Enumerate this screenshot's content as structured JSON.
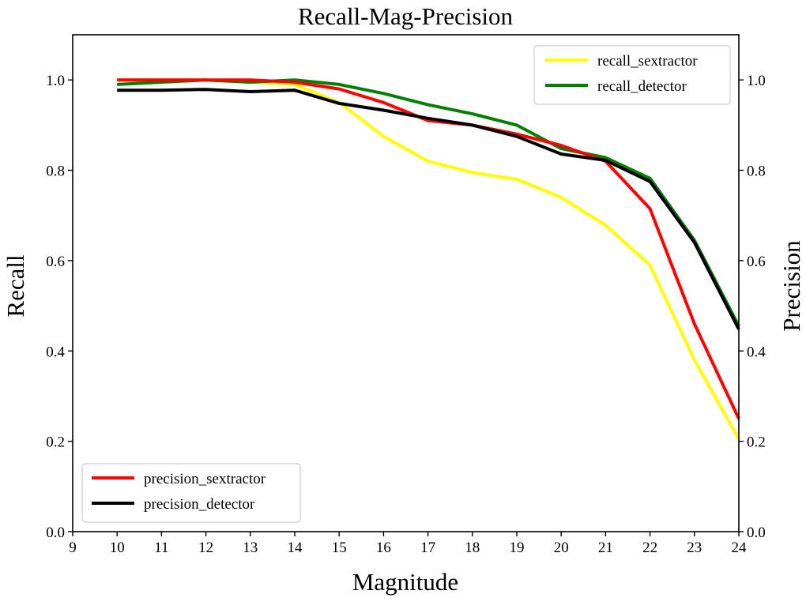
{
  "chart_data": {
    "type": "line",
    "title": "Recall-Mag-Precision",
    "xlabel": "Magnitude",
    "ylabel": "Recall",
    "y2label": "Precision",
    "xlim": [
      9,
      24
    ],
    "ylim": [
      0.0,
      1.1
    ],
    "y2lim": [
      0.0,
      1.1
    ],
    "grid": false,
    "x": [
      10,
      11,
      12,
      13,
      14,
      15,
      16,
      17,
      18,
      19,
      20,
      21,
      22,
      23,
      24
    ],
    "xticks": [
      "9",
      "10",
      "11",
      "12",
      "13",
      "14",
      "15",
      "16",
      "17",
      "18",
      "19",
      "20",
      "21",
      "22",
      "23",
      "24"
    ],
    "yticks": [
      "0.0",
      "0.2",
      "0.4",
      "0.6",
      "0.8",
      "1.0"
    ],
    "y2ticks": [
      "0.0",
      "0.2",
      "0.4",
      "0.6",
      "0.8",
      "1.0"
    ],
    "series": [
      {
        "name": "recall_sextractor",
        "axis": "left",
        "color": "#ffff00",
        "values": [
          1.0,
          1.0,
          1.0,
          0.995,
          0.99,
          0.95,
          0.875,
          0.82,
          0.795,
          0.78,
          0.74,
          0.678,
          0.59,
          0.38,
          0.205
        ]
      },
      {
        "name": "recall_detector",
        "axis": "left",
        "color": "#008000",
        "values": [
          0.99,
          0.995,
          1.0,
          0.995,
          1.0,
          0.99,
          0.97,
          0.945,
          0.925,
          0.9,
          0.848,
          0.828,
          0.782,
          0.645,
          0.455
        ]
      },
      {
        "name": "precision_sextractor",
        "axis": "right",
        "color": "#ff0000",
        "values": [
          1.0,
          1.0,
          1.0,
          1.0,
          0.995,
          0.98,
          0.95,
          0.91,
          0.9,
          0.88,
          0.855,
          0.82,
          0.715,
          0.46,
          0.25
        ]
      },
      {
        "name": "precision_detector",
        "axis": "right",
        "color": "#000000",
        "values": [
          0.977,
          0.977,
          0.979,
          0.974,
          0.977,
          0.948,
          0.933,
          0.915,
          0.9,
          0.875,
          0.836,
          0.822,
          0.775,
          0.64,
          0.448
        ]
      }
    ],
    "legends": [
      {
        "placement": "upper-right",
        "entries": [
          "recall_sextractor",
          "recall_detector"
        ]
      },
      {
        "placement": "lower-left",
        "entries": [
          "precision_sextractor",
          "precision_detector"
        ]
      }
    ]
  }
}
